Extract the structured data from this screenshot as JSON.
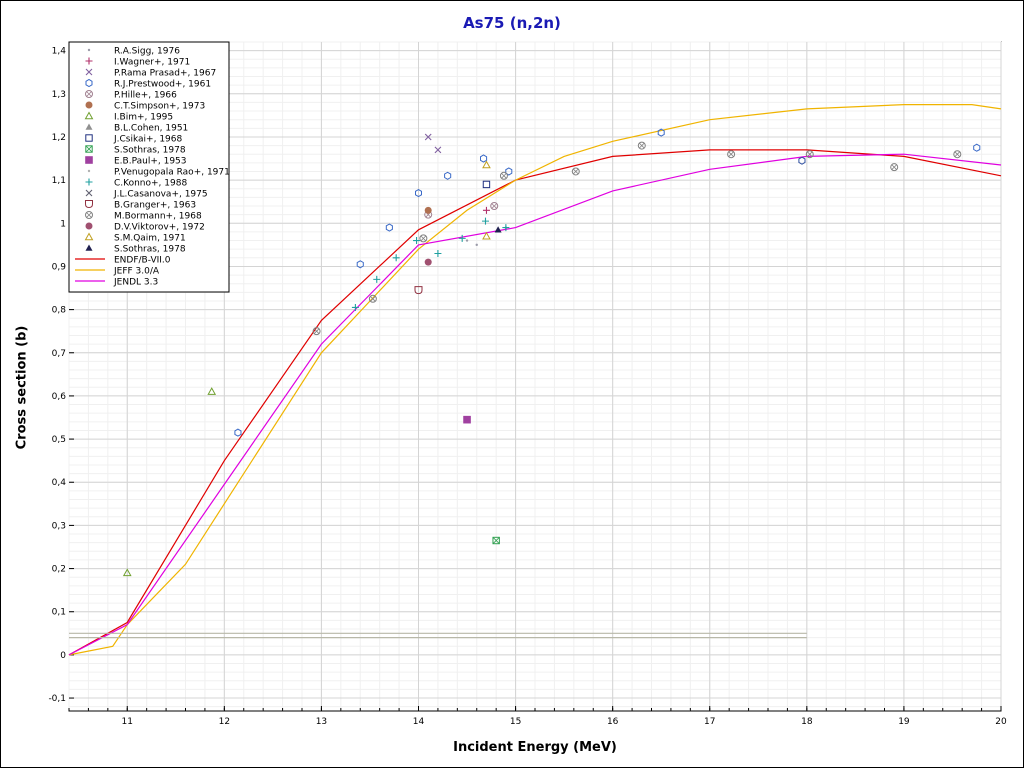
{
  "chart_data": {
    "type": "scatter",
    "title": "As75 (n,2n)",
    "xlabel": "Incident Energy (MeV)",
    "ylabel": "Cross section (b)",
    "xlim": [
      10.4,
      20
    ],
    "ylim": [
      -0.13,
      1.42
    ],
    "x_ticks": [
      11,
      12,
      13,
      14,
      15,
      16,
      17,
      18,
      19,
      20
    ],
    "x_tick_labels": [
      "11",
      "12",
      "13",
      "14",
      "15",
      "16",
      "17",
      "18",
      "19",
      "20"
    ],
    "y_ticks": [
      -0.1,
      0,
      0.1,
      0.2,
      0.3,
      0.4,
      0.5,
      0.6,
      0.7,
      0.8,
      0.9,
      1,
      1.1,
      1.2,
      1.3,
      1.4
    ],
    "y_tick_labels": [
      "-0,1",
      "0",
      "0,1",
      "0,2",
      "0,3",
      "0,4",
      "0,5",
      "0,6",
      "0,7",
      "0,8",
      "0,9",
      "1",
      "1,1",
      "1,2",
      "1,3",
      "1,4"
    ],
    "grid": true,
    "legend_position": "top-left",
    "experimental": [
      {
        "name": "R.A.Sigg, 1976",
        "marker": "dot",
        "color": "#9a9aa8",
        "points": [
          [
            14.5,
            0.96
          ],
          [
            14.6,
            0.95
          ],
          [
            14.9,
            0.99
          ]
        ]
      },
      {
        "name": "I.Wagner+, 1971",
        "marker": "plus",
        "color": "#b0306a",
        "points": [
          [
            14.7,
            1.03
          ]
        ]
      },
      {
        "name": "P.Rama Prasad+, 1967",
        "marker": "x",
        "color": "#8060a0",
        "points": [
          [
            14.1,
            1.2
          ],
          [
            14.2,
            1.17
          ]
        ]
      },
      {
        "name": "R.J.Prestwood+, 1961",
        "marker": "hexagon",
        "color": "#3a6ac8",
        "points": [
          [
            12.14,
            0.515
          ],
          [
            13.4,
            0.905
          ],
          [
            13.7,
            0.99
          ],
          [
            14.0,
            1.07
          ],
          [
            14.3,
            1.11
          ],
          [
            14.67,
            1.15
          ],
          [
            14.93,
            1.12
          ],
          [
            16.5,
            1.21
          ],
          [
            19.75,
            1.175
          ]
        ]
      },
      {
        "name": "P.Hille+, 1966",
        "marker": "circle-cross",
        "color": "#a08090",
        "points": [
          [
            14.1,
            1.02
          ],
          [
            14.78,
            1.04
          ]
        ]
      },
      {
        "name": "C.T.Simpson+, 1973",
        "marker": "circle-filled",
        "color": "#b07050",
        "points": [
          [
            14.1,
            1.03
          ]
        ]
      },
      {
        "name": "I.Bim+, 1995",
        "marker": "triangle",
        "color": "#70a030",
        "points": [
          [
            11.0,
            0.19
          ],
          [
            11.87,
            0.61
          ]
        ]
      },
      {
        "name": "B.L.Cohen, 1951",
        "marker": "triangle-filled",
        "color": "#909090",
        "points": []
      },
      {
        "name": "J.Csikai+, 1968",
        "marker": "square",
        "color": "#203080",
        "points": [
          [
            14.7,
            1.09
          ]
        ]
      },
      {
        "name": "S.Sothras, 1978",
        "marker": "square-cross",
        "color": "#30a050",
        "points": [
          [
            14.8,
            0.265
          ]
        ]
      },
      {
        "name": "E.B.Paul+, 1953",
        "marker": "square-filled",
        "color": "#a040a0",
        "points": [
          [
            14.5,
            0.545
          ]
        ]
      },
      {
        "name": "P.Venugopala Rao+, 1971",
        "marker": "dot",
        "color": "#b0b0b0",
        "points": []
      },
      {
        "name": "C.Konno+, 1988",
        "marker": "plus",
        "color": "#20a0a0",
        "points": [
          [
            13.35,
            0.805
          ],
          [
            13.57,
            0.87
          ],
          [
            13.77,
            0.92
          ],
          [
            13.98,
            0.96
          ],
          [
            14.2,
            0.93
          ],
          [
            14.45,
            0.965
          ],
          [
            14.69,
            1.005
          ],
          [
            14.9,
            0.99
          ]
        ]
      },
      {
        "name": "J.L.Casanova+, 1975",
        "marker": "x",
        "color": "#606070",
        "points": []
      },
      {
        "name": "B.Granger+, 1963",
        "marker": "shield",
        "color": "#903040",
        "points": [
          [
            14.0,
            0.845
          ]
        ]
      },
      {
        "name": "M.Bormann+, 1968",
        "marker": "circle-cross",
        "color": "#808080",
        "points": [
          [
            12.95,
            0.75
          ],
          [
            13.53,
            0.825
          ],
          [
            14.05,
            0.965
          ],
          [
            14.88,
            1.11
          ],
          [
            15.62,
            1.12
          ],
          [
            16.3,
            1.18
          ],
          [
            17.22,
            1.16
          ],
          [
            18.03,
            1.16
          ],
          [
            18.9,
            1.13
          ],
          [
            19.55,
            1.16
          ]
        ]
      },
      {
        "name": "D.V.Viktorov+, 1972",
        "marker": "circle-filled",
        "color": "#a05070",
        "points": [
          [
            14.1,
            0.91
          ]
        ]
      },
      {
        "name": "S.M.Qaim, 1971",
        "marker": "triangle",
        "color": "#c0a020",
        "points": [
          [
            14.7,
            0.97
          ],
          [
            14.7,
            1.135
          ]
        ]
      },
      {
        "name": "S.Sothras, 1978",
        "marker": "triangle-filled",
        "color": "#202050",
        "points": [
          [
            14.82,
            0.985
          ]
        ]
      },
      {
        "name": "",
        "marker": "hexagon",
        "color": "#3050a0",
        "points": [
          [
            17.95,
            1.145
          ]
        ]
      }
    ],
    "evaluations": [
      {
        "name": "ENDF/B-VII.0",
        "color": "#e00000",
        "x": [
          10.4,
          11.0,
          12.0,
          13.0,
          14.0,
          15.0,
          16.0,
          17.0,
          18.0,
          19.0,
          20.0
        ],
        "y": [
          0.0,
          0.075,
          0.45,
          0.775,
          0.985,
          1.1,
          1.155,
          1.17,
          1.17,
          1.155,
          1.11
        ]
      },
      {
        "name": "JEFF 3.0/A",
        "color": "#f0b400",
        "x": [
          10.4,
          10.85,
          11.0,
          11.6,
          12.0,
          13.0,
          13.5,
          14.0,
          14.5,
          15.0,
          15.5,
          16.0,
          17.0,
          18.0,
          19.0,
          19.7,
          20.0
        ],
        "y": [
          0.0,
          0.02,
          0.07,
          0.21,
          0.35,
          0.7,
          0.82,
          0.94,
          1.03,
          1.1,
          1.155,
          1.19,
          1.24,
          1.265,
          1.275,
          1.275,
          1.265
        ]
      },
      {
        "name": "JENDL 3.3",
        "color": "#e000e0",
        "x": [
          10.4,
          11.0,
          12.0,
          13.0,
          14.0,
          15.0,
          16.0,
          17.0,
          18.0,
          19.0,
          20.0
        ],
        "y": [
          0.0,
          0.07,
          0.395,
          0.72,
          0.95,
          0.99,
          1.075,
          1.125,
          1.155,
          1.16,
          1.135
        ]
      },
      {
        "name": "",
        "color": "#b8b8a8",
        "x": [
          10.4,
          18.0
        ],
        "y": [
          0.05,
          0.05
        ]
      },
      {
        "name": "",
        "color": "#b8b8a8",
        "x": [
          10.4,
          18.0
        ],
        "y": [
          0.04,
          0.04
        ]
      }
    ]
  }
}
